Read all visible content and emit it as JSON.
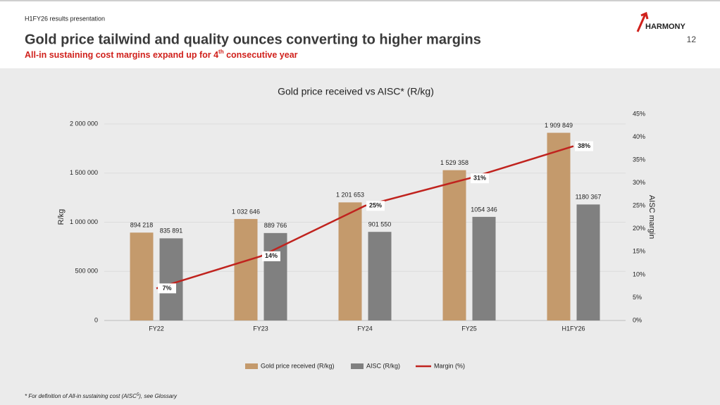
{
  "header": {
    "kicker": "H1FY26 results presentation",
    "title": "Gold price tailwind and quality ounces converting to higher margins",
    "subtitle": [
      "All-in sustaining cost margins expand up for 4",
      "th",
      " consecutive year"
    ],
    "page_number": "12",
    "logo": "HARMONY"
  },
  "footnote": [
    "* For definition of All-in sustaining cost (AISC",
    "5",
    "), see Glossary"
  ],
  "chart_data": {
    "type": "bar",
    "title": "Gold price received vs AISC* (R/kg)",
    "y_label": "R/kg",
    "y2_label": "AISC margin",
    "categories": [
      "FY22",
      "FY23",
      "FY24",
      "FY25",
      "H1FY26"
    ],
    "series": [
      {
        "name": "Gold price received (R/kg)",
        "color": "#c49a6c",
        "values": [
          894218,
          1032646,
          1201653,
          1529358,
          1909849
        ],
        "value_labels": [
          "894 218",
          "1 032 646",
          "1 201 653",
          "1 529 358",
          "1 909 849"
        ]
      },
      {
        "name": "AISC (R/kg)",
        "color": "#808080",
        "values": [
          835891,
          889766,
          901550,
          1054346,
          1180367
        ],
        "value_labels": [
          "835 891",
          "889 766",
          "901 550",
          "1054 346",
          "1180 367"
        ]
      },
      {
        "name": "Margin (%)",
        "type": "line",
        "axis": "y2",
        "color": "#c0231e",
        "values": [
          7,
          14,
          25,
          31,
          38
        ],
        "value_labels": [
          "7%",
          "14%",
          "25%",
          "31%",
          "38%"
        ]
      }
    ],
    "ylim": [
      0,
      2100000
    ],
    "yticks": [
      0,
      {
        "value": 500000,
        "label": "500 000"
      },
      {
        "value": 1000000,
        "label": "1 000 000"
      },
      {
        "value": 1500000,
        "label": "1 500 000"
      },
      {
        "value": 2000000,
        "label": "2 000 000"
      }
    ],
    "y2lim": [
      0,
      45
    ],
    "y2ticks": [
      {
        "value": 0,
        "label": "0%"
      },
      {
        "value": 5,
        "label": "5%"
      },
      {
        "value": 10,
        "label": "10%"
      },
      {
        "value": 15,
        "label": "15%"
      },
      {
        "value": 20,
        "label": "20%"
      },
      {
        "value": 25,
        "label": "25%"
      },
      {
        "value": 30,
        "label": "30%"
      },
      {
        "value": 35,
        "label": "35%"
      },
      {
        "value": 40,
        "label": "40%"
      },
      {
        "value": 45,
        "label": "45%"
      }
    ],
    "grid": true,
    "legend": "bottom"
  }
}
